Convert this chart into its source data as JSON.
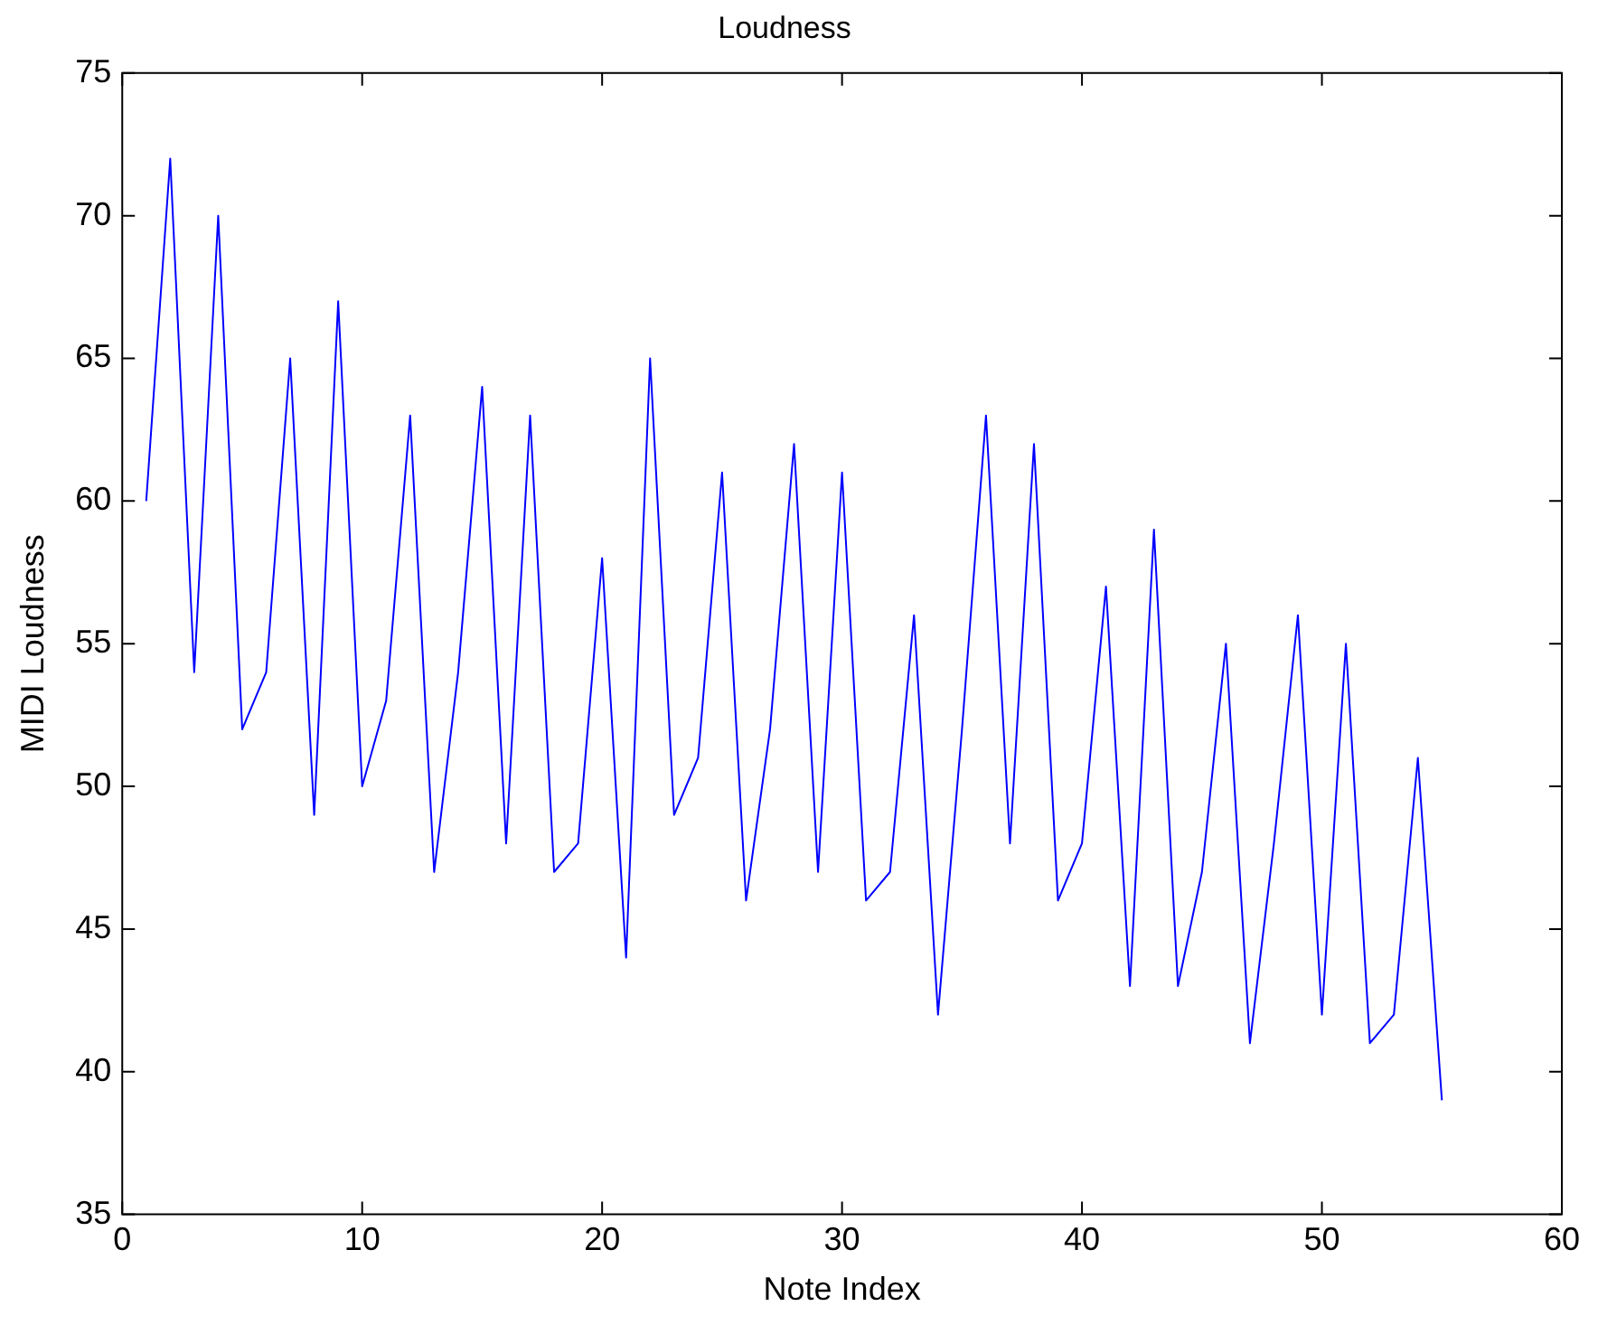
{
  "chart_data": {
    "type": "line",
    "title": "Loudness",
    "xlabel": "Note Index",
    "ylabel": "MIDI Loudness",
    "x": [
      1,
      2,
      3,
      4,
      5,
      6,
      7,
      8,
      9,
      10,
      11,
      12,
      13,
      14,
      15,
      16,
      17,
      18,
      19,
      20,
      21,
      22,
      23,
      24,
      25,
      26,
      27,
      28,
      29,
      30,
      31,
      32,
      33,
      34,
      35,
      36,
      37,
      38,
      39,
      40,
      41,
      42,
      43,
      44,
      45,
      46,
      47,
      48,
      49,
      50,
      51,
      52,
      53,
      54,
      55
    ],
    "series": [
      {
        "color": "#0000ff",
        "values": [
          60,
          72,
          54,
          70,
          52,
          54,
          65,
          49,
          67,
          50,
          53,
          63,
          47,
          54,
          64,
          48,
          63,
          47,
          48,
          58,
          44,
          65,
          49,
          51,
          61,
          46,
          52,
          62,
          47,
          61,
          46,
          47,
          56,
          42,
          52,
          63,
          48,
          62,
          46,
          48,
          57,
          43,
          59,
          43,
          47,
          55,
          41,
          48,
          56,
          42,
          55,
          41,
          42,
          51,
          39
        ]
      }
    ],
    "xlim": [
      0,
      60
    ],
    "xticks": [
      0,
      10,
      20,
      30,
      40,
      50,
      60
    ],
    "ylim": [
      35,
      75
    ],
    "yticks": [
      35,
      40,
      45,
      50,
      55,
      60,
      65,
      70,
      75
    ],
    "grid": false,
    "legend": false,
    "marker": "none",
    "line_style": "solid"
  }
}
